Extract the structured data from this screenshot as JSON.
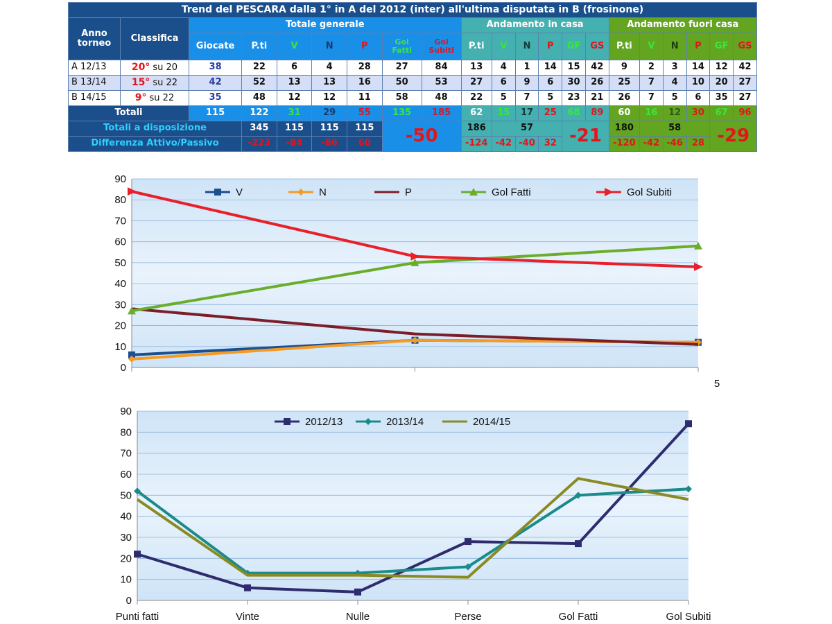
{
  "table": {
    "title": "Trend del PESCARA dalla 1° in A del 2012 (inter) all'ultima disputata in B (frosinone)",
    "headers": {
      "anno": [
        "Anno",
        "torneo"
      ],
      "classifica": "Classifica",
      "totale_generale": "Totale generale",
      "andamento_casa": "Andamento in casa",
      "andamento_fuori": "Andamento fuori casa",
      "giocate": "Giocate",
      "pti": "P.ti",
      "v": "V",
      "n": "N",
      "p": "P",
      "gol_fatti": [
        "Gol",
        "Fatti"
      ],
      "gol_subiti": [
        "Gol",
        "Subiti"
      ],
      "gf": "GF",
      "gs": "GS"
    },
    "rows": [
      {
        "anno": "A 12/13",
        "pos": "20°",
        "su": "su 20",
        "giocate": "38",
        "tot": [
          "22",
          "6",
          "4",
          "28",
          "27",
          "84"
        ],
        "casa": [
          "13",
          "4",
          "1",
          "14",
          "15",
          "42"
        ],
        "fuori": [
          "9",
          "2",
          "3",
          "14",
          "12",
          "42"
        ]
      },
      {
        "anno": "B 13/14",
        "pos": "15°",
        "su": "su 22",
        "giocate": "42",
        "tot": [
          "52",
          "13",
          "13",
          "16",
          "50",
          "53"
        ],
        "casa": [
          "27",
          "6",
          "9",
          "6",
          "30",
          "26"
        ],
        "fuori": [
          "25",
          "7",
          "4",
          "10",
          "20",
          "27"
        ]
      },
      {
        "anno": "B 14/15",
        "pos": "9°",
        "su": "su 22",
        "giocate": "35",
        "tot": [
          "48",
          "12",
          "12",
          "11",
          "58",
          "48"
        ],
        "casa": [
          "22",
          "5",
          "7",
          "5",
          "23",
          "21"
        ],
        "fuori": [
          "26",
          "7",
          "5",
          "6",
          "35",
          "27"
        ]
      }
    ],
    "totali": {
      "label": "Totali",
      "giocate": "115",
      "tot": [
        "122",
        "31",
        "29",
        "55",
        "135",
        "185"
      ],
      "casa": [
        "62",
        "15",
        "17",
        "25",
        "68",
        "89"
      ],
      "fuori": [
        "60",
        "16",
        "12",
        "30",
        "67",
        "96"
      ]
    },
    "disposizione": {
      "label": "Totali a disposizione",
      "tot": [
        "345",
        "115",
        "115",
        "115"
      ],
      "casa": [
        "186",
        "57"
      ],
      "fuori": [
        "180",
        "58"
      ]
    },
    "differenza": {
      "label": "Differenza Attivo/Passivo",
      "tot": [
        "-223",
        "-84",
        "-86",
        "60"
      ],
      "casa": [
        "-124",
        "-42",
        "-40",
        "32"
      ],
      "fuori": [
        "-120",
        "-42",
        "-46",
        "28"
      ]
    },
    "big": {
      "tot": "-50",
      "casa": "-21",
      "fuori": "-29"
    }
  },
  "chart_data": [
    {
      "type": "line",
      "title": "",
      "xlabel": "",
      "ylabel": "",
      "x_tick_labels": [
        "",
        "",
        "5"
      ],
      "x": [
        1,
        2,
        3
      ],
      "ylim": [
        0,
        90
      ],
      "yticks": [
        0,
        10,
        20,
        30,
        40,
        50,
        60,
        70,
        80,
        90
      ],
      "grid": true,
      "legend": "top",
      "series": [
        {
          "name": "V",
          "values": [
            6,
            13,
            12
          ],
          "color": "#1b4f8f",
          "marker": "square"
        },
        {
          "name": "N",
          "values": [
            4,
            13,
            12
          ],
          "color": "#f59a23",
          "marker": "diamond"
        },
        {
          "name": "P",
          "values": [
            28,
            16,
            11
          ],
          "color": "#7a1f2a",
          "marker": "none"
        },
        {
          "name": "Gol Fatti",
          "values": [
            27,
            50,
            58
          ],
          "color": "#6aad2a",
          "marker": "triangle"
        },
        {
          "name": "Gol Subiti",
          "values": [
            84,
            53,
            48
          ],
          "color": "#e8202a",
          "marker": "arrow"
        }
      ]
    },
    {
      "type": "line",
      "title": "",
      "xlabel": "",
      "ylabel": "",
      "categories": [
        "Punti fatti",
        "Vinte",
        "Nulle",
        "Perse",
        "Gol Fatti",
        "Gol Subiti"
      ],
      "ylim": [
        0,
        90
      ],
      "yticks": [
        0,
        10,
        20,
        30,
        40,
        50,
        60,
        70,
        80,
        90
      ],
      "grid": true,
      "legend": "top",
      "series": [
        {
          "name": "2012/13",
          "values": [
            22,
            6,
            4,
            28,
            27,
            84
          ],
          "color": "#2e2c6e",
          "marker": "square"
        },
        {
          "name": "2013/14",
          "values": [
            52,
            13,
            13,
            16,
            50,
            53
          ],
          "color": "#1a8a8a",
          "marker": "diamond"
        },
        {
          "name": "2014/15",
          "values": [
            48,
            12,
            12,
            11,
            58,
            48
          ],
          "color": "#8a8a22",
          "marker": "none"
        }
      ]
    }
  ]
}
